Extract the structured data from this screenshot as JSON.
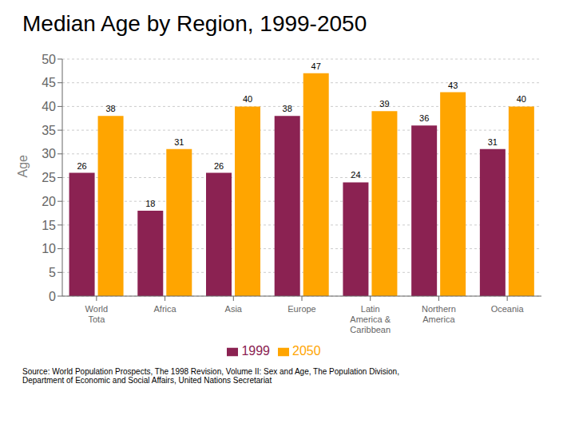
{
  "chart_data": {
    "type": "bar",
    "title": "Median Age by Region, 1999-2050",
    "categories": [
      "World\nTota",
      "Africa",
      "Asia",
      "Europe",
      "Latin\nAmerica &\nCaribbean",
      "Northern\nAmerica",
      "Oceania"
    ],
    "series": [
      {
        "name": "1999",
        "color": "#8B2252",
        "values": [
          26,
          18,
          26,
          38,
          24,
          36,
          31
        ]
      },
      {
        "name": "2050",
        "color": "#FFA500",
        "values": [
          38,
          31,
          40,
          47,
          39,
          43,
          40
        ]
      }
    ],
    "ylabel": "Age",
    "ylim": [
      0,
      50
    ],
    "yticks": [
      0,
      5,
      10,
      15,
      20,
      25,
      30,
      35,
      40,
      45,
      50
    ],
    "grid": true,
    "legend": "bottom",
    "data_labels": true,
    "annotations": [
      "Source: World Population Prospects, The 1998 Revision, Volume II: Sex and Age, The Population Division,\nDepartment of Economic and Social Affairs, United Nations Secretariat"
    ]
  }
}
